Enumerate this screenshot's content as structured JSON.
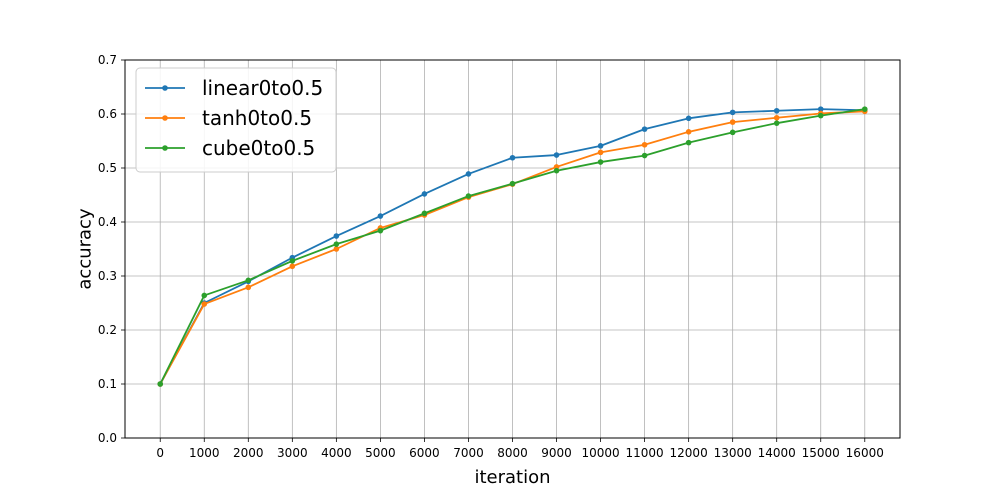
{
  "chart_data": {
    "type": "line",
    "title": "",
    "xlabel": "iteration",
    "ylabel": "accuracy",
    "x": [
      0,
      1000,
      2000,
      3000,
      4000,
      5000,
      6000,
      7000,
      8000,
      9000,
      10000,
      11000,
      12000,
      13000,
      14000,
      15000,
      16000
    ],
    "x_ticks": [
      "0",
      "1000",
      "2000",
      "3000",
      "4000",
      "5000",
      "6000",
      "7000",
      "8000",
      "9000",
      "10000",
      "11000",
      "12000",
      "13000",
      "14000",
      "15000",
      "16000"
    ],
    "y_ticks": [
      "0.0",
      "0.1",
      "0.2",
      "0.3",
      "0.4",
      "0.5",
      "0.6",
      "0.7"
    ],
    "xlim": [
      -800,
      16800
    ],
    "ylim": [
      0,
      0.7
    ],
    "grid": true,
    "legend_position": "top-left",
    "series": [
      {
        "name": "linear0to0.5",
        "color": "#1f77b4",
        "values": [
          0.1,
          0.25,
          0.29,
          0.334,
          0.374,
          0.411,
          0.452,
          0.489,
          0.519,
          0.524,
          0.541,
          0.572,
          0.592,
          0.603,
          0.606,
          0.609,
          0.607
        ]
      },
      {
        "name": "tanh0to0.5",
        "color": "#ff7f0e",
        "values": [
          0.1,
          0.248,
          0.279,
          0.318,
          0.35,
          0.389,
          0.413,
          0.446,
          0.47,
          0.502,
          0.529,
          0.543,
          0.567,
          0.585,
          0.593,
          0.601,
          0.605
        ]
      },
      {
        "name": "cube0to0.5",
        "color": "#2ca02c",
        "values": [
          0.1,
          0.264,
          0.292,
          0.328,
          0.359,
          0.384,
          0.416,
          0.448,
          0.471,
          0.495,
          0.511,
          0.523,
          0.547,
          0.566,
          0.583,
          0.597,
          0.609
        ]
      }
    ]
  }
}
